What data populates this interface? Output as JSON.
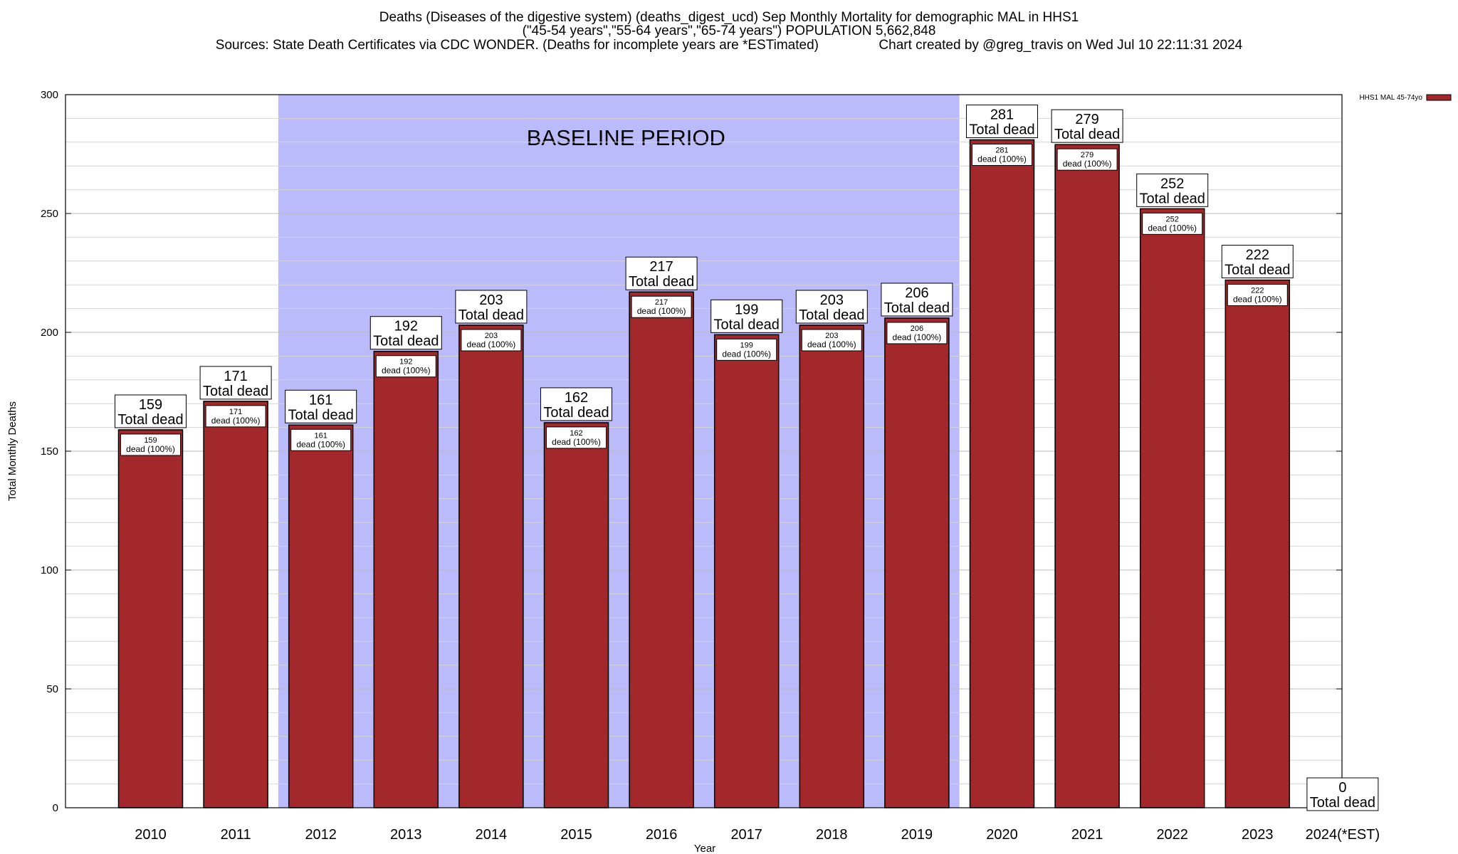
{
  "chart_data": {
    "type": "bar",
    "title_lines": [
      "Deaths (Diseases of the digestive system) (deaths_digest_ucd) Sep Monthly Mortality for demographic MAL in HHS1",
      "(\"45-54 years\",\"55-64 years\",\"65-74 years\") POPULATION 5,662,848",
      "Sources: State Death Certificates via CDC WONDER. (Deaths for incomplete years are *ESTimated)                Chart created by @greg_travis on Wed Jul 10 22:11:31 2024"
    ],
    "xlabel": "Year",
    "ylabel": "Total Monthly Deaths",
    "ylim": [
      0,
      300
    ],
    "yticks": [
      0,
      50,
      100,
      150,
      200,
      250,
      300
    ],
    "minor_grid_step": 10,
    "grid": true,
    "legend": {
      "position": "top-right",
      "label": "HHS1 MAL 45-74yo",
      "color": "#a3282b"
    },
    "baseline_band": {
      "label": "BASELINE PERIOD",
      "from_category": "2012",
      "to_category": "2019",
      "color": "#bbbbfc"
    },
    "bar_color": "#a3282b",
    "total_label_suffix": "Total dead",
    "inner_label_suffix": "dead (100%)",
    "categories": [
      "2010",
      "2011",
      "2012",
      "2013",
      "2014",
      "2015",
      "2016",
      "2017",
      "2018",
      "2019",
      "2020",
      "2021",
      "2022",
      "2023",
      "2024(*EST)"
    ],
    "series": [
      {
        "name": "HHS1 MAL 45-74yo",
        "values": [
          159,
          171,
          161,
          192,
          203,
          162,
          217,
          199,
          203,
          206,
          281,
          279,
          252,
          222,
          0
        ]
      }
    ]
  }
}
